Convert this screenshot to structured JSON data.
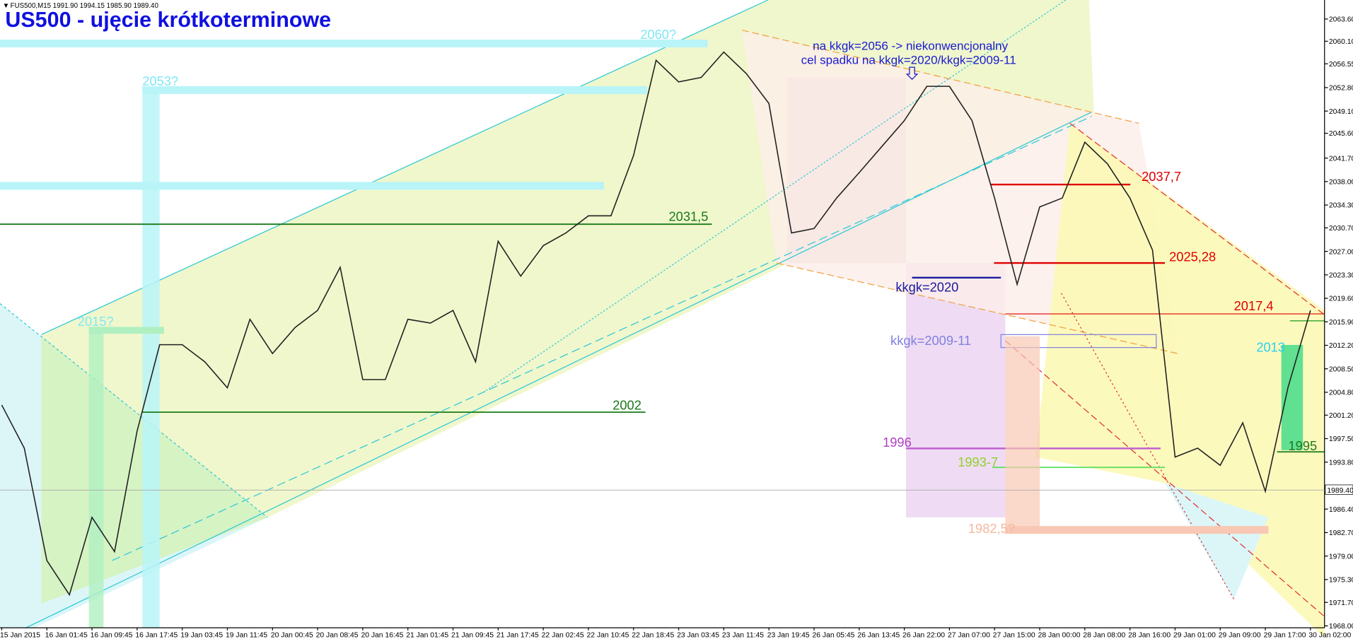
{
  "header": "FUS500,M15  1991.90 1994.15 1985.90 1989.40",
  "chart_data": {
    "type": "line",
    "title": "US500 - ujęcie krótkoterminowe",
    "note": [
      "na kkgk=2056 -> niekonwencjonalny",
      "cel spadku na kkgk=2020/kkgk=2009-11"
    ],
    "annotations": [
      "2060?",
      "2053?",
      "2015?",
      "2031,5",
      "2002",
      "2037,7",
      "2025,28",
      "2017,4",
      "kkgk=2020",
      "kkgk=2009-11",
      "1996",
      "1993-7",
      "1982,5?",
      "2013",
      "1995"
    ],
    "categories": [
      "15 Jan 2015",
      null,
      "16 Jan 01:45",
      null,
      "16 Jan 09:45",
      null,
      "16 Jan 17:45",
      null,
      "19 Jan 03:45",
      null,
      "19 Jan 11:45",
      null,
      "20 Jan 00:45",
      null,
      "20 Jan 08:45",
      null,
      "20 Jan 16:45",
      null,
      "21 Jan 01:45",
      null,
      "21 Jan 09:45",
      null,
      "21 Jan 17:45",
      null,
      "22 Jan 02:45",
      null,
      "22 Jan 10:45",
      null,
      "22 Jan 18:45",
      null,
      "23 Jan 03:45",
      null,
      "23 Jan 11:45",
      null,
      "23 Jan 19:45",
      null,
      "26 Jan 05:45",
      null,
      "26 Jan 13:45",
      null,
      "26 Jan 22:00",
      null,
      "27 Jan 07:00",
      null,
      "27 Jan 15:00",
      null,
      "28 Jan 00:00",
      null,
      "28 Jan 08:00",
      null,
      "28 Jan 16:00",
      null,
      "29 Jan 01:00",
      null,
      "29 Jan 09:00",
      null,
      "29 Jan 17:00",
      null,
      "30 Jan 02:00"
    ],
    "series": [
      {
        "name": "FUS500",
        "color": "#222222",
        "values": [
          2002.8,
          1996.0,
          1978.3,
          1972.9,
          1985.1,
          1979.7,
          1998.7,
          2012.3,
          2012.3,
          2009.6,
          2005.5,
          2016.3,
          2010.9,
          2015.0,
          2017.7,
          2024.5,
          2006.8,
          2006.8,
          2016.3,
          2015.7,
          2017.7,
          2009.6,
          2028.6,
          2023.1,
          2027.9,
          2029.9,
          2032.6,
          2032.6,
          2042.1,
          2057.1,
          2053.7,
          2054.4,
          2058.4,
          2055.0,
          2050.3,
          2029.9,
          2030.6,
          2035.4,
          2039.4,
          2043.5,
          2047.6,
          2053.0,
          2053.0,
          2047.6,
          2035.4,
          2021.8,
          2034.0,
          2035.4,
          2044.2,
          2040.8,
          2035.4,
          2027.2,
          1994.6,
          1996.0,
          1993.3,
          2000.0,
          1989.2,
          2005.5,
          2017.7
        ]
      }
    ],
    "last_price": {
      "value": 1989.4,
      "label": "1989.40"
    },
    "ylim": [
      1967.7,
      2066.6
    ],
    "yticks": [
      {
        "value": 2063.6,
        "label": "2063.60"
      },
      {
        "value": 2060.1,
        "label": "2060.10"
      },
      {
        "value": 2056.55,
        "label": "2056.55"
      },
      {
        "value": 2052.8,
        "label": "2052.80"
      },
      {
        "value": 2049.1,
        "label": "2049.10"
      },
      {
        "value": 2045.6,
        "label": "2045.60"
      },
      {
        "value": 2041.7,
        "label": "2041.70"
      },
      {
        "value": 2038.0,
        "label": "2038.00"
      },
      {
        "value": 2034.3,
        "label": "2034.30"
      },
      {
        "value": 2030.7,
        "label": "2030.70"
      },
      {
        "value": 2027.0,
        "label": "2027.00"
      },
      {
        "value": 2023.3,
        "label": "2023.30"
      },
      {
        "value": 2019.6,
        "label": "2019.60"
      },
      {
        "value": 2015.9,
        "label": "2015.90"
      },
      {
        "value": 2012.2,
        "label": "2012.20"
      },
      {
        "value": 2008.5,
        "label": "2008.50"
      },
      {
        "value": 2004.8,
        "label": "2004.80"
      },
      {
        "value": 2001.2,
        "label": "2001.20"
      },
      {
        "value": 1997.5,
        "label": "1997.50"
      },
      {
        "value": 1993.8,
        "label": "1993.80"
      },
      {
        "value": 1986.4,
        "label": "1986.40"
      },
      {
        "value": 1982.7,
        "label": "1982.70"
      },
      {
        "value": 1979.0,
        "label": "1979.00"
      },
      {
        "value": 1975.3,
        "label": "1975.30"
      },
      {
        "value": 1971.7,
        "label": "1971.70"
      },
      {
        "value": 1968.0,
        "label": "1968.00"
      }
    ],
    "grid": false
  }
}
